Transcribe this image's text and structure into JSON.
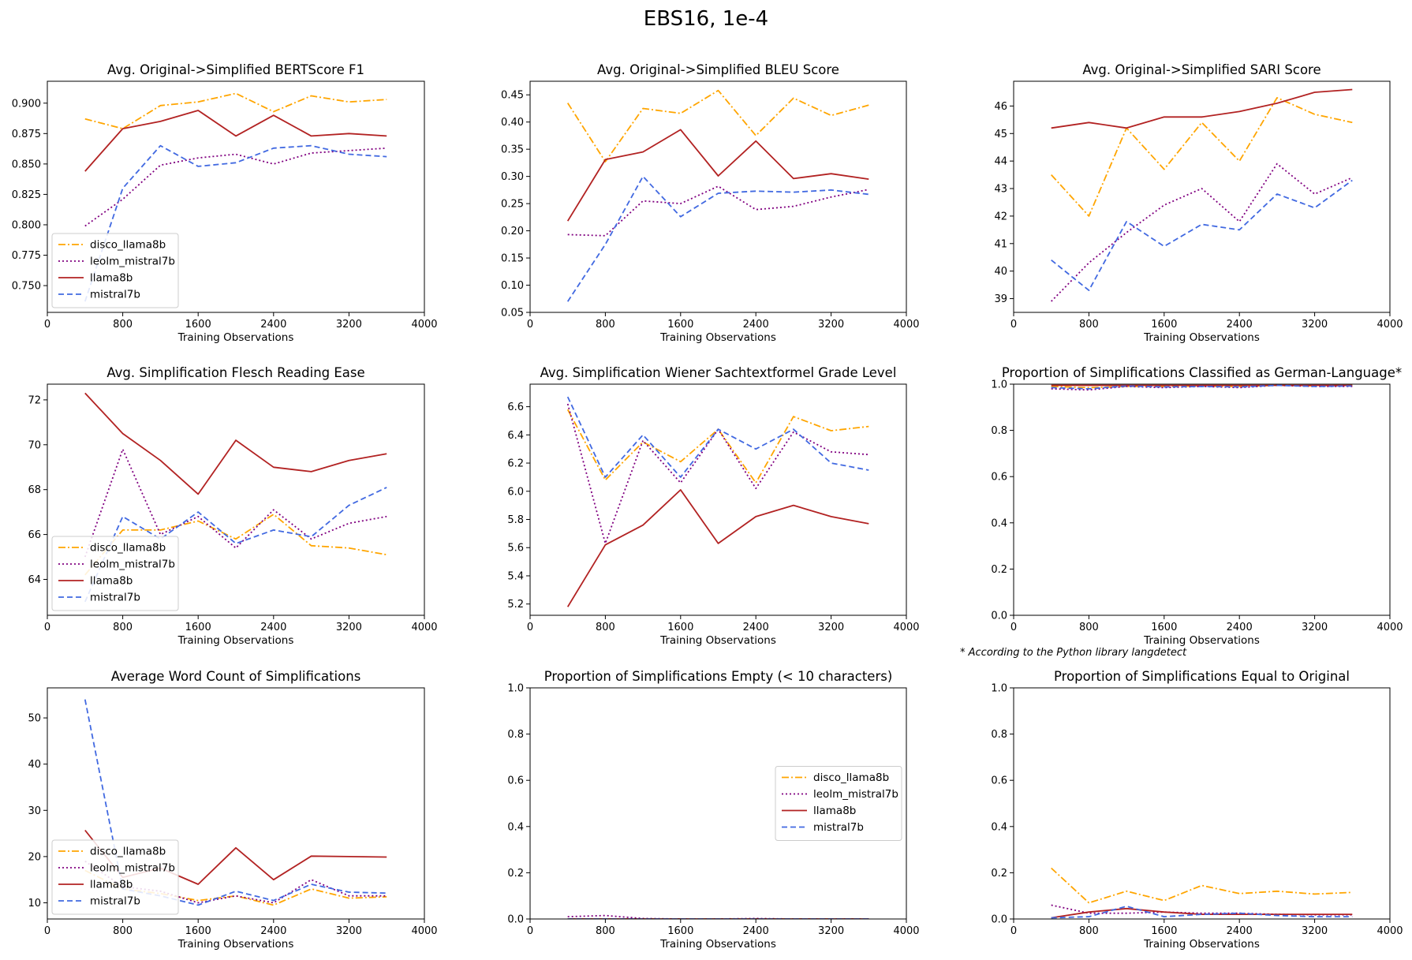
{
  "figure_title": "EBS16, 1e-4",
  "footnote": "* According to the Python library langdetect",
  "colors": {
    "disco_llama8b": "#ffa500",
    "leolm_mistral7b": "#800080",
    "llama8b": "#b22222",
    "mistral7b": "#4169e1"
  },
  "chart_data": [
    {
      "type": "line",
      "title": "Avg. Original->Simplified BERTScore F1",
      "xlabel": "Training Observations",
      "xlim": [
        0,
        4000
      ],
      "xticks": [
        0,
        800,
        1600,
        2400,
        3200,
        4000
      ],
      "ylim": [
        0.728,
        0.918
      ],
      "yticks": [
        "0.750",
        "0.775",
        "0.800",
        "0.825",
        "0.850",
        "0.875",
        "0.900"
      ],
      "legend": "lower left",
      "x": [
        400,
        800,
        1200,
        1600,
        2000,
        2400,
        2800,
        3200,
        3600
      ],
      "series": [
        {
          "name": "disco_llama8b",
          "values": [
            0.887,
            0.879,
            0.898,
            0.901,
            0.908,
            0.893,
            0.906,
            0.901,
            0.903
          ]
        },
        {
          "name": "leolm_mistral7b",
          "values": [
            0.799,
            0.821,
            0.849,
            0.855,
            0.858,
            0.85,
            0.859,
            0.861,
            0.863
          ]
        },
        {
          "name": "llama8b",
          "values": [
            0.844,
            0.879,
            0.885,
            0.894,
            0.873,
            0.89,
            0.873,
            0.875,
            0.873
          ]
        },
        {
          "name": "mistral7b",
          "values": [
            0.737,
            0.83,
            0.865,
            0.848,
            0.851,
            0.863,
            0.865,
            0.858,
            0.856
          ]
        }
      ]
    },
    {
      "type": "line",
      "title": "Avg. Original->Simplified BLEU Score",
      "xlabel": "Training Observations",
      "xlim": [
        0,
        4000
      ],
      "xticks": [
        0,
        800,
        1600,
        2400,
        3200,
        4000
      ],
      "ylim": [
        0.05,
        0.475
      ],
      "yticks": [
        "0.05",
        "0.10",
        "0.15",
        "0.20",
        "0.25",
        "0.30",
        "0.35",
        "0.40",
        "0.45"
      ],
      "legend": "none",
      "x": [
        400,
        800,
        1200,
        1600,
        2000,
        2400,
        2800,
        3200,
        3600
      ],
      "series": [
        {
          "name": "disco_llama8b",
          "values": [
            0.435,
            0.327,
            0.425,
            0.416,
            0.458,
            0.375,
            0.444,
            0.412,
            0.431
          ]
        },
        {
          "name": "leolm_mistral7b",
          "values": [
            0.193,
            0.191,
            0.255,
            0.25,
            0.282,
            0.239,
            0.245,
            0.262,
            0.276
          ]
        },
        {
          "name": "llama8b",
          "values": [
            0.218,
            0.331,
            0.345,
            0.386,
            0.301,
            0.365,
            0.296,
            0.305,
            0.295
          ]
        },
        {
          "name": "mistral7b",
          "values": [
            0.07,
            0.175,
            0.3,
            0.226,
            0.269,
            0.273,
            0.271,
            0.275,
            0.267
          ]
        }
      ]
    },
    {
      "type": "line",
      "title": "Avg. Original->Simplified SARI Score",
      "xlabel": "Training Observations",
      "xlim": [
        0,
        4000
      ],
      "xticks": [
        0,
        800,
        1600,
        2400,
        3200,
        4000
      ],
      "ylim": [
        38.5,
        46.9
      ],
      "yticks": [
        "39",
        "40",
        "41",
        "42",
        "43",
        "44",
        "45",
        "46"
      ],
      "legend": "none",
      "x": [
        400,
        800,
        1200,
        1600,
        2000,
        2400,
        2800,
        3200,
        3600
      ],
      "series": [
        {
          "name": "disco_llama8b",
          "values": [
            43.5,
            42.0,
            45.2,
            43.7,
            45.4,
            44.0,
            46.3,
            45.7,
            45.4
          ]
        },
        {
          "name": "leolm_mistral7b",
          "values": [
            38.9,
            40.3,
            41.4,
            42.4,
            43.0,
            41.8,
            43.9,
            42.8,
            43.4
          ]
        },
        {
          "name": "llama8b",
          "values": [
            45.2,
            45.4,
            45.2,
            45.6,
            45.6,
            45.8,
            46.1,
            46.5,
            46.6
          ]
        },
        {
          "name": "mistral7b",
          "values": [
            40.4,
            39.3,
            41.8,
            40.9,
            41.7,
            41.5,
            42.8,
            42.3,
            43.3
          ]
        }
      ]
    },
    {
      "type": "line",
      "title": "Avg. Simplification Flesch Reading Ease",
      "xlabel": "Training Observations",
      "xlim": [
        0,
        4000
      ],
      "xticks": [
        0,
        800,
        1600,
        2400,
        3200,
        4000
      ],
      "ylim": [
        62.4,
        72.7
      ],
      "yticks": [
        "64",
        "66",
        "68",
        "70",
        "72"
      ],
      "legend": "lower left",
      "x": [
        400,
        800,
        1200,
        1600,
        2000,
        2400,
        2800,
        3200,
        3600
      ],
      "series": [
        {
          "name": "disco_llama8b",
          "values": [
            64.2,
            66.2,
            66.2,
            66.6,
            65.8,
            66.9,
            65.5,
            65.4,
            65.1
          ]
        },
        {
          "name": "leolm_mistral7b",
          "values": [
            65.0,
            69.8,
            66.0,
            66.8,
            65.4,
            67.1,
            65.8,
            66.5,
            66.8
          ]
        },
        {
          "name": "llama8b",
          "values": [
            72.3,
            70.5,
            69.3,
            67.8,
            70.2,
            69.0,
            68.8,
            69.3,
            69.6
          ]
        },
        {
          "name": "mistral7b",
          "values": [
            63.0,
            66.8,
            65.8,
            67.0,
            65.6,
            66.2,
            65.9,
            67.3,
            68.1
          ]
        }
      ]
    },
    {
      "type": "line",
      "title": "Avg. Simplification Wiener Sachtextformel Grade Level",
      "xlabel": "Training Observations",
      "xlim": [
        0,
        4000
      ],
      "xticks": [
        0,
        800,
        1600,
        2400,
        3200,
        4000
      ],
      "ylim": [
        5.12,
        6.76
      ],
      "yticks": [
        "5.2",
        "5.4",
        "5.6",
        "5.8",
        "6.0",
        "6.2",
        "6.4",
        "6.6"
      ],
      "legend": "none",
      "x": [
        400,
        800,
        1200,
        1600,
        2000,
        2400,
        2800,
        3200,
        3600
      ],
      "series": [
        {
          "name": "disco_llama8b",
          "values": [
            6.58,
            6.08,
            6.35,
            6.21,
            6.44,
            6.06,
            6.53,
            6.43,
            6.46
          ]
        },
        {
          "name": "leolm_mistral7b",
          "values": [
            6.62,
            5.63,
            6.36,
            6.06,
            6.44,
            6.02,
            6.42,
            6.28,
            6.26
          ]
        },
        {
          "name": "llama8b",
          "values": [
            5.18,
            5.62,
            5.76,
            6.01,
            5.63,
            5.82,
            5.9,
            5.82,
            5.77
          ]
        },
        {
          "name": "mistral7b",
          "values": [
            6.67,
            6.1,
            6.4,
            6.1,
            6.44,
            6.3,
            6.44,
            6.2,
            6.15
          ]
        }
      ]
    },
    {
      "type": "line",
      "title": "Proportion of Simplifications Classified as German-Language*",
      "xlabel": "Training Observations",
      "xlim": [
        0,
        4000
      ],
      "xticks": [
        0,
        800,
        1600,
        2400,
        3200,
        4000
      ],
      "ylim": [
        0,
        1
      ],
      "yticks": [
        "0.0",
        "0.2",
        "0.4",
        "0.6",
        "0.8",
        "1.0"
      ],
      "legend": "none",
      "x": [
        400,
        800,
        1200,
        1600,
        2000,
        2400,
        2800,
        3200,
        3600
      ],
      "series": [
        {
          "name": "disco_llama8b",
          "values": [
            0.99,
            0.985,
            0.99,
            0.99,
            0.992,
            0.99,
            0.995,
            0.993,
            0.995
          ]
        },
        {
          "name": "leolm_mistral7b",
          "values": [
            0.98,
            0.975,
            0.99,
            0.985,
            0.99,
            0.985,
            0.995,
            0.99,
            0.99
          ]
        },
        {
          "name": "llama8b",
          "values": [
            0.995,
            0.995,
            0.995,
            0.995,
            0.995,
            0.995,
            0.995,
            0.995,
            0.995
          ]
        },
        {
          "name": "mistral7b",
          "values": [
            0.985,
            0.98,
            0.992,
            0.988,
            0.99,
            0.988,
            0.995,
            0.99,
            0.992
          ]
        }
      ]
    },
    {
      "type": "line",
      "title": "Average Word Count of Simplifications",
      "xlabel": "Training Observations",
      "xlim": [
        0,
        4000
      ],
      "xticks": [
        0,
        800,
        1600,
        2400,
        3200,
        4000
      ],
      "ylim": [
        6.5,
        56.5
      ],
      "yticks": [
        "10",
        "20",
        "30",
        "40",
        "50"
      ],
      "legend": "lower left",
      "x": [
        400,
        800,
        1200,
        1600,
        2000,
        2400,
        2800,
        3200,
        3600
      ],
      "series": [
        {
          "name": "disco_llama8b",
          "values": [
            17.0,
            13.0,
            12.0,
            10.5,
            11.5,
            9.5,
            13.0,
            11.0,
            11.3
          ]
        },
        {
          "name": "leolm_mistral7b",
          "values": [
            19.0,
            13.5,
            12.5,
            10.0,
            11.5,
            10.0,
            15.0,
            11.5,
            11.5
          ]
        },
        {
          "name": "llama8b",
          "values": [
            25.7,
            15.5,
            17.5,
            14.0,
            21.9,
            15.0,
            20.1,
            20.0,
            19.9
          ]
        },
        {
          "name": "mistral7b",
          "values": [
            54.0,
            13.0,
            11.5,
            9.5,
            12.5,
            10.5,
            14.0,
            12.3,
            12.1
          ]
        }
      ]
    },
    {
      "type": "line",
      "title": "Proportion of Simplifications Empty (< 10 characters)",
      "xlabel": "Training Observations",
      "xlim": [
        0,
        4000
      ],
      "xticks": [
        0,
        800,
        1600,
        2400,
        3200,
        4000
      ],
      "ylim": [
        0,
        1
      ],
      "yticks": [
        "0.0",
        "0.2",
        "0.4",
        "0.6",
        "0.8",
        "1.0"
      ],
      "legend": "center right",
      "x": [
        400,
        800,
        1200,
        1600,
        2000,
        2400,
        2800,
        3200,
        3600
      ],
      "series": [
        {
          "name": "disco_llama8b",
          "values": [
            0,
            0,
            0,
            0,
            0,
            0,
            0,
            0,
            0
          ]
        },
        {
          "name": "leolm_mistral7b",
          "values": [
            0.01,
            0.015,
            0.002,
            0,
            0,
            0.002,
            0,
            0,
            0
          ]
        },
        {
          "name": "llama8b",
          "values": [
            0,
            0,
            0,
            0,
            0,
            0,
            0,
            0,
            0
          ]
        },
        {
          "name": "mistral7b",
          "values": [
            0,
            0,
            0,
            0,
            0,
            0,
            0,
            0,
            0
          ]
        }
      ]
    },
    {
      "type": "line",
      "title": "Proportion of Simplifications Equal to Original",
      "xlabel": "Training Observations",
      "xlim": [
        0,
        4000
      ],
      "xticks": [
        0,
        800,
        1600,
        2400,
        3200,
        4000
      ],
      "ylim": [
        0,
        1
      ],
      "yticks": [
        "0.0",
        "0.2",
        "0.4",
        "0.6",
        "0.8",
        "1.0"
      ],
      "legend": "none",
      "x": [
        400,
        800,
        1200,
        1600,
        2000,
        2400,
        2800,
        3200,
        3600
      ],
      "series": [
        {
          "name": "disco_llama8b",
          "values": [
            0.22,
            0.07,
            0.12,
            0.08,
            0.145,
            0.11,
            0.12,
            0.108,
            0.115
          ]
        },
        {
          "name": "leolm_mistral7b",
          "values": [
            0.06,
            0.025,
            0.025,
            0.03,
            0.025,
            0.025,
            0.02,
            0.018,
            0.018
          ]
        },
        {
          "name": "llama8b",
          "values": [
            0.005,
            0.03,
            0.045,
            0.03,
            0.02,
            0.02,
            0.02,
            0.02,
            0.02
          ]
        },
        {
          "name": "mistral7b",
          "values": [
            0.005,
            0.01,
            0.055,
            0.01,
            0.02,
            0.025,
            0.015,
            0.01,
            0.01
          ]
        }
      ]
    }
  ]
}
